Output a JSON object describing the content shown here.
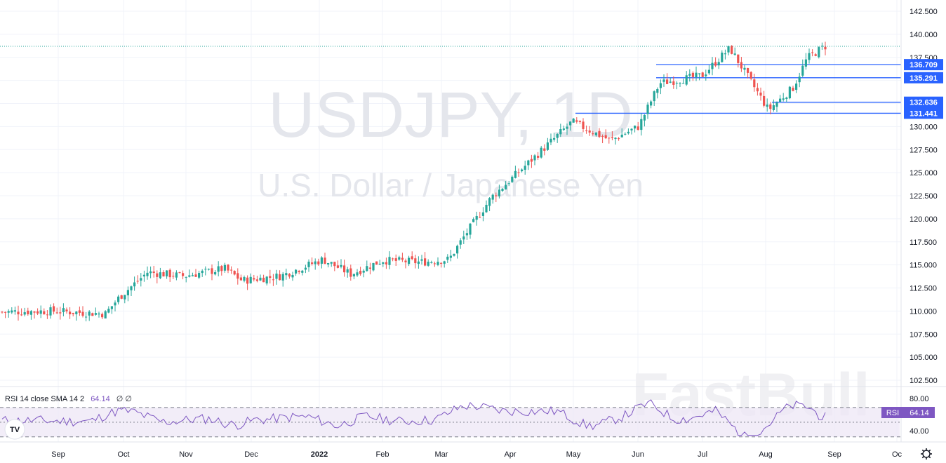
{
  "watermark": {
    "symbol": "USDJPY, 1D",
    "description": "U.S. Dollar / Japanese Yen",
    "brand": "FastBull"
  },
  "indicator": {
    "label": "RSI 14 close SMA 14 2",
    "value": "64.14",
    "extra": "∅ ∅",
    "badge_label": "RSI",
    "badge_value": "64.14",
    "ticks": [
      "80.00",
      "40.00"
    ]
  },
  "logo_text": "TV",
  "colors": {
    "up": "#26a69a",
    "down": "#ef5350",
    "level": "#2962ff",
    "rsi_line": "#7e57c2",
    "rsi_band": "#ede7f6"
  },
  "chart_data": {
    "type": "candlestick",
    "symbol": "USDJPY",
    "timeframe": "1D",
    "ylim": [
      101.5,
      143.5
    ],
    "y_ticks": [
      "142.500",
      "140.000",
      "137.500",
      "135.000",
      "132.500",
      "130.000",
      "127.500",
      "125.000",
      "122.500",
      "120.000",
      "117.500",
      "115.000",
      "112.500",
      "110.000",
      "107.500",
      "105.000",
      "102.500"
    ],
    "x_ticks": [
      "Sep",
      "Oct",
      "Nov",
      "Dec",
      "2022",
      "Feb",
      "Mar",
      "Apr",
      "May",
      "Jun",
      "Jul",
      "Aug",
      "Sep",
      "Oc"
    ],
    "last_price": 138.7,
    "horizontal_levels": [
      {
        "label": "136.709",
        "value": 136.709,
        "start": "Jun"
      },
      {
        "label": "135.291",
        "value": 135.291,
        "start": "Jun"
      },
      {
        "label": "132.636",
        "value": 132.636,
        "start": "Aug"
      },
      {
        "label": "131.441",
        "value": 131.441,
        "start": "May"
      }
    ],
    "close_path": [
      [
        "Aug",
        109.9
      ],
      [
        "Sep",
        110.0
      ],
      [
        "Sep",
        109.7
      ],
      [
        "Oct",
        111.5
      ],
      [
        "Oct",
        114.2
      ],
      [
        "Nov",
        113.8
      ],
      [
        "Nov",
        114.6
      ],
      [
        "Dec",
        113.3
      ],
      [
        "Dec",
        113.8
      ],
      [
        "2022",
        115.6
      ],
      [
        "Jan",
        114.0
      ],
      [
        "Feb",
        115.5
      ],
      [
        "Feb",
        115.3
      ],
      [
        "Mar",
        115.6
      ],
      [
        "Mar",
        118.5
      ],
      [
        "Apr",
        122.3
      ],
      [
        "Apr",
        128.0
      ],
      [
        "May",
        130.5
      ],
      [
        "May",
        128.5
      ],
      [
        "Jun",
        130.0
      ],
      [
        "Jun",
        134.7
      ],
      [
        "Jul",
        135.5
      ],
      [
        "Jul",
        138.5
      ],
      [
        "Aug",
        131.8
      ],
      [
        "Aug",
        134.2
      ],
      [
        "Aug",
        137.4
      ],
      [
        "Sep",
        138.7
      ]
    ],
    "rsi_range": [
      25,
      90
    ],
    "rsi_levels": [
      70,
      50,
      30
    ]
  }
}
